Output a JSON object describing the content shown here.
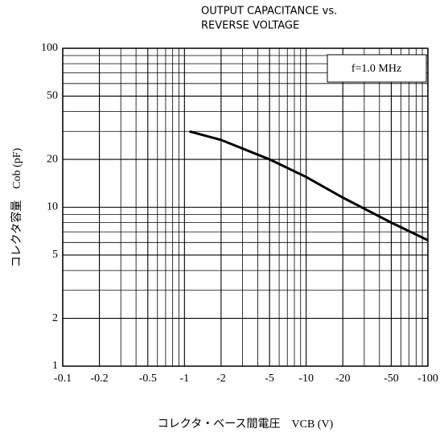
{
  "chart_data": {
    "type": "line",
    "title": [
      "OUTPUT CAPACITANCE vs.",
      "REVERSE VOLTAGE"
    ],
    "xlabel": "コレクタ・ベース間電圧　VCB (V)",
    "ylabel": "コレクタ容量　Cob (pF)",
    "annotation": "f=1.0 MHz",
    "xscale": "log",
    "yscale": "log",
    "grid": true,
    "xlim": [
      -0.1,
      -100
    ],
    "ylim": [
      1,
      100
    ],
    "xticks": [
      -0.1,
      -0.2,
      -0.5,
      -1,
      -2,
      -5,
      -10,
      -20,
      -50,
      -100
    ],
    "yticks": [
      1,
      2,
      5,
      10,
      20,
      50,
      100
    ],
    "xgrid": [
      -0.3,
      -0.4,
      -0.6,
      -0.7,
      -0.8,
      -0.9,
      -3,
      -4,
      -6,
      -7,
      -8,
      -9,
      -30,
      -40,
      -60,
      -70,
      -80,
      -90
    ],
    "ygrid": [
      3,
      4,
      6,
      7,
      8,
      9,
      30,
      40,
      60,
      70,
      80,
      90
    ],
    "series": [
      {
        "color": "#000000",
        "x": [
          -1.1,
          -2,
          -5,
          -10,
          -20,
          -50,
          -100
        ],
        "values": [
          30,
          26.5,
          20,
          15.5,
          11.5,
          8,
          6.2
        ]
      }
    ]
  }
}
